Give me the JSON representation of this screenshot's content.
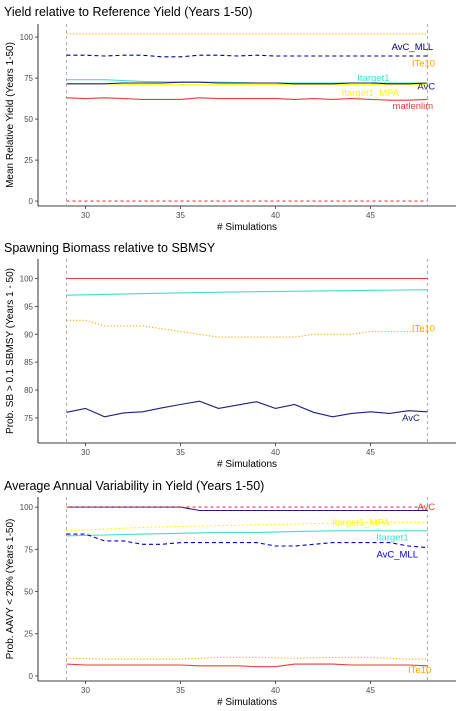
{
  "chart_data": [
    {
      "type": "line",
      "title": "Yield relative to Reference Yield (Years 1-50)",
      "xlabel": "# Simulations",
      "ylabel": "Mean Relative Yield (Years 1-50)",
      "xlim": [
        29,
        48
      ],
      "ylim": [
        0,
        105
      ],
      "xticks": [
        30,
        35,
        40,
        45
      ],
      "yticks": [
        0,
        25,
        50,
        75,
        100
      ],
      "vlines": [
        29,
        48
      ],
      "grid": false,
      "series": [
        {
          "name": "ITe10",
          "color": "#FFA500",
          "dash": "1.2 2",
          "x": [
            29,
            31,
            33,
            35,
            37,
            39,
            41,
            43,
            45,
            47,
            48
          ],
          "y": [
            102,
            102,
            102,
            102,
            102,
            102,
            102,
            102,
            102,
            102,
            102
          ],
          "label": {
            "text": "ITe10",
            "x": 48.4,
            "y": 84,
            "anchor": "end"
          }
        },
        {
          "name": "AvC_MLL",
          "color": "#00008B",
          "dash": "4 3",
          "x": [
            29,
            30,
            31,
            32,
            33,
            34,
            35,
            36,
            37,
            38,
            39,
            40,
            41,
            42,
            43,
            44,
            45,
            46,
            47,
            48
          ],
          "y": [
            89,
            89,
            88.5,
            89,
            89,
            88,
            88,
            89,
            89,
            88.5,
            89,
            88.5,
            88.5,
            88.5,
            88.5,
            88.5,
            88.5,
            88.5,
            88.5,
            88.5
          ],
          "label": {
            "text": "AvC_MLL",
            "x": 48.3,
            "y": 94,
            "anchor": "end"
          }
        },
        {
          "name": "Itarget1",
          "color": "#40E0D0",
          "dash": "",
          "x": [
            29,
            31,
            33,
            35,
            37,
            39,
            41,
            43,
            45,
            47,
            48
          ],
          "y": [
            74,
            74,
            73,
            72.5,
            72.5,
            72,
            72,
            72,
            72,
            72,
            72
          ],
          "label": {
            "text": "Itarget1",
            "x": 46,
            "y": 75,
            "anchor": "end"
          }
        },
        {
          "name": "Itarget1_MPA",
          "color": "#FFFF00",
          "dash": "",
          "x": [
            29,
            31,
            33,
            35,
            37,
            39,
            41,
            43,
            45,
            47,
            48
          ],
          "y": [
            71.5,
            71.5,
            71,
            71,
            71,
            71,
            71,
            71,
            71,
            71,
            71
          ],
          "label": {
            "text": "Itarget1_MPA",
            "x": 46.5,
            "y": 66,
            "anchor": "end"
          }
        },
        {
          "name": "AvC",
          "color": "#1f1f7a",
          "dash": "",
          "x": [
            29,
            30,
            31,
            32,
            33,
            34,
            35,
            36,
            37,
            38,
            39,
            40,
            41,
            42,
            43,
            44,
            45,
            46,
            47,
            48
          ],
          "y": [
            71.5,
            71.5,
            71.5,
            72,
            72,
            72,
            72.5,
            72.5,
            72,
            72,
            72,
            72,
            71.5,
            71.5,
            71.5,
            72,
            72,
            71.5,
            71.5,
            72
          ],
          "label": {
            "text": "AvC",
            "x": 48.4,
            "y": 70,
            "anchor": "end"
          }
        },
        {
          "name": "matlenlim",
          "color": "#EE3B3B",
          "dash": "",
          "x": [
            29,
            30,
            31,
            32,
            33,
            34,
            35,
            36,
            37,
            38,
            39,
            40,
            41,
            42,
            43,
            44,
            45,
            46,
            47,
            48
          ],
          "y": [
            63,
            62.5,
            63,
            62.5,
            62,
            62,
            62,
            63,
            62.5,
            62.5,
            62.5,
            62.5,
            62,
            62.5,
            62,
            62.5,
            62,
            61.5,
            61.5,
            62
          ],
          "label": {
            "text": "matlenlim",
            "x": 48.3,
            "y": 58,
            "anchor": "end"
          }
        },
        {
          "name": "ref",
          "color": "#EE3B3B",
          "dash": "3 3",
          "x": [
            29,
            48
          ],
          "y": [
            0,
            0
          ],
          "label": null
        }
      ]
    },
    {
      "type": "line",
      "title": "Spawning Biomass relative to SBMSY",
      "xlabel": "# Simulations",
      "ylabel": "Prob. SB > 0.1 SBMSY (Years 1 - 50)",
      "xlim": [
        29,
        48
      ],
      "ylim": [
        73.5,
        100.5
      ],
      "xticks": [
        30,
        35,
        40,
        45
      ],
      "yticks": [
        75,
        80,
        85,
        90,
        95,
        100
      ],
      "vlines": [
        29,
        48
      ],
      "grid": false,
      "series": [
        {
          "name": "red",
          "color": "#EE3B3B",
          "dash": "",
          "x": [
            29,
            48
          ],
          "y": [
            100,
            100
          ],
          "label": null
        },
        {
          "name": "teal",
          "color": "#40E0D0",
          "dash": "",
          "x": [
            29,
            33,
            38,
            43,
            48
          ],
          "y": [
            97,
            97.3,
            97.6,
            97.8,
            98
          ],
          "label": null
        },
        {
          "name": "ITe10",
          "color": "#FFA500",
          "dash": "1.2 2",
          "x": [
            29,
            30,
            31,
            32,
            33,
            34,
            35,
            36,
            37,
            38,
            39,
            40,
            41,
            42,
            43,
            44,
            45,
            46,
            47,
            48
          ],
          "y": [
            92.5,
            92.5,
            91.5,
            91.5,
            91.5,
            91,
            90.5,
            90,
            89.5,
            89.5,
            89.5,
            89.5,
            89.5,
            90,
            90,
            90,
            90.5,
            90.5,
            90.5,
            90.5
          ],
          "label": {
            "text": "ITe10",
            "x": 48.4,
            "y": 91,
            "anchor": "end"
          }
        },
        {
          "name": "AvC",
          "color": "#1f1f7a",
          "dash": "",
          "x": [
            29,
            30,
            31,
            32,
            33,
            34,
            35,
            36,
            37,
            38,
            39,
            40,
            41,
            42,
            43,
            44,
            45,
            46,
            47,
            48
          ],
          "y": [
            76,
            76.7,
            75.2,
            75.9,
            76.1,
            76.8,
            77.4,
            78,
            76.7,
            77.3,
            77.9,
            76.7,
            77.4,
            76,
            75.2,
            75.8,
            76.1,
            75.8,
            76.3,
            76.1
          ],
          "label": {
            "text": "AvC",
            "x": 47.6,
            "y": 75,
            "anchor": "end"
          }
        }
      ]
    },
    {
      "type": "line",
      "title": "Average Annual Variability in Yield (Years 1-50)",
      "xlabel": "# Simulations",
      "ylabel": "Prob. AAVY < 20% (Years 1-50)",
      "xlim": [
        29,
        48
      ],
      "ylim": [
        0,
        103
      ],
      "xticks": [
        30,
        35,
        40,
        45
      ],
      "yticks": [
        0,
        25,
        50,
        75,
        100
      ],
      "vlines": [
        29,
        48
      ],
      "grid": false,
      "series": [
        {
          "name": "AvC_ref",
          "color": "#1f1f7a",
          "dash": "",
          "x": [
            29,
            35,
            36,
            40,
            48
          ],
          "y": [
            100,
            100,
            98,
            98,
            98
          ],
          "label": null
        },
        {
          "name": "AvC",
          "color": "#EE3B3B",
          "dash": "3 3",
          "x": [
            29,
            48
          ],
          "y": [
            100,
            100
          ],
          "label": {
            "text": "AvC",
            "x": 48.4,
            "y": 100,
            "anchor": "end"
          }
        },
        {
          "name": "Itarget1_MPA",
          "color": "#FFFF00",
          "dash": "2 2",
          "x": [
            29,
            31,
            33,
            35,
            37,
            39,
            41,
            43,
            45,
            47,
            48
          ],
          "y": [
            86,
            87,
            88,
            88.5,
            89,
            89.5,
            90,
            90.5,
            91,
            91,
            91
          ],
          "label": {
            "text": "Itarget1_MPA",
            "x": 46,
            "y": 91,
            "anchor": "end"
          }
        },
        {
          "name": "Itarget1",
          "color": "#40E0D0",
          "dash": "",
          "x": [
            29,
            31,
            33,
            35,
            37,
            39,
            41,
            43,
            45,
            47,
            48
          ],
          "y": [
            83,
            83.5,
            84,
            84.5,
            85,
            85,
            85.5,
            86,
            86,
            86,
            86
          ],
          "label": {
            "text": "Itarget1",
            "x": 47,
            "y": 82,
            "anchor": "end"
          }
        },
        {
          "name": "AvC_MLL",
          "color": "#0000CD",
          "dash": "4 3",
          "x": [
            29,
            30,
            31,
            32,
            33,
            34,
            35,
            36,
            37,
            38,
            39,
            40,
            41,
            42,
            43,
            44,
            45,
            46,
            47,
            48
          ],
          "y": [
            84,
            84,
            80,
            80,
            78,
            78,
            79,
            79,
            79,
            79,
            79,
            77,
            77,
            78,
            79,
            79,
            79,
            79,
            77,
            76
          ],
          "label": {
            "text": "AvC_MLL",
            "x": 47.5,
            "y": 72,
            "anchor": "end"
          }
        },
        {
          "name": "ITe10",
          "color": "#FFA500",
          "dash": "1.2 2",
          "x": [
            29,
            31,
            33,
            35,
            37,
            39,
            41,
            43,
            45,
            47,
            48
          ],
          "y": [
            10.5,
            10,
            10,
            10,
            11,
            11,
            10.5,
            11,
            11,
            10,
            10
          ],
          "label": {
            "text": "ITe10",
            "x": 48.2,
            "y": 3.5,
            "anchor": "end"
          }
        },
        {
          "name": "red",
          "color": "#EE3B3B",
          "dash": "",
          "x": [
            29,
            30,
            31,
            32,
            33,
            34,
            35,
            36,
            37,
            38,
            39,
            40,
            41,
            42,
            43,
            44,
            45,
            46,
            47,
            48
          ],
          "y": [
            7,
            6.5,
            6.5,
            6.5,
            6.5,
            6.5,
            6.5,
            6,
            6,
            6,
            5.5,
            5.5,
            7,
            7,
            7,
            6.5,
            6.5,
            6.5,
            6.5,
            6
          ],
          "label": null
        }
      ]
    }
  ]
}
